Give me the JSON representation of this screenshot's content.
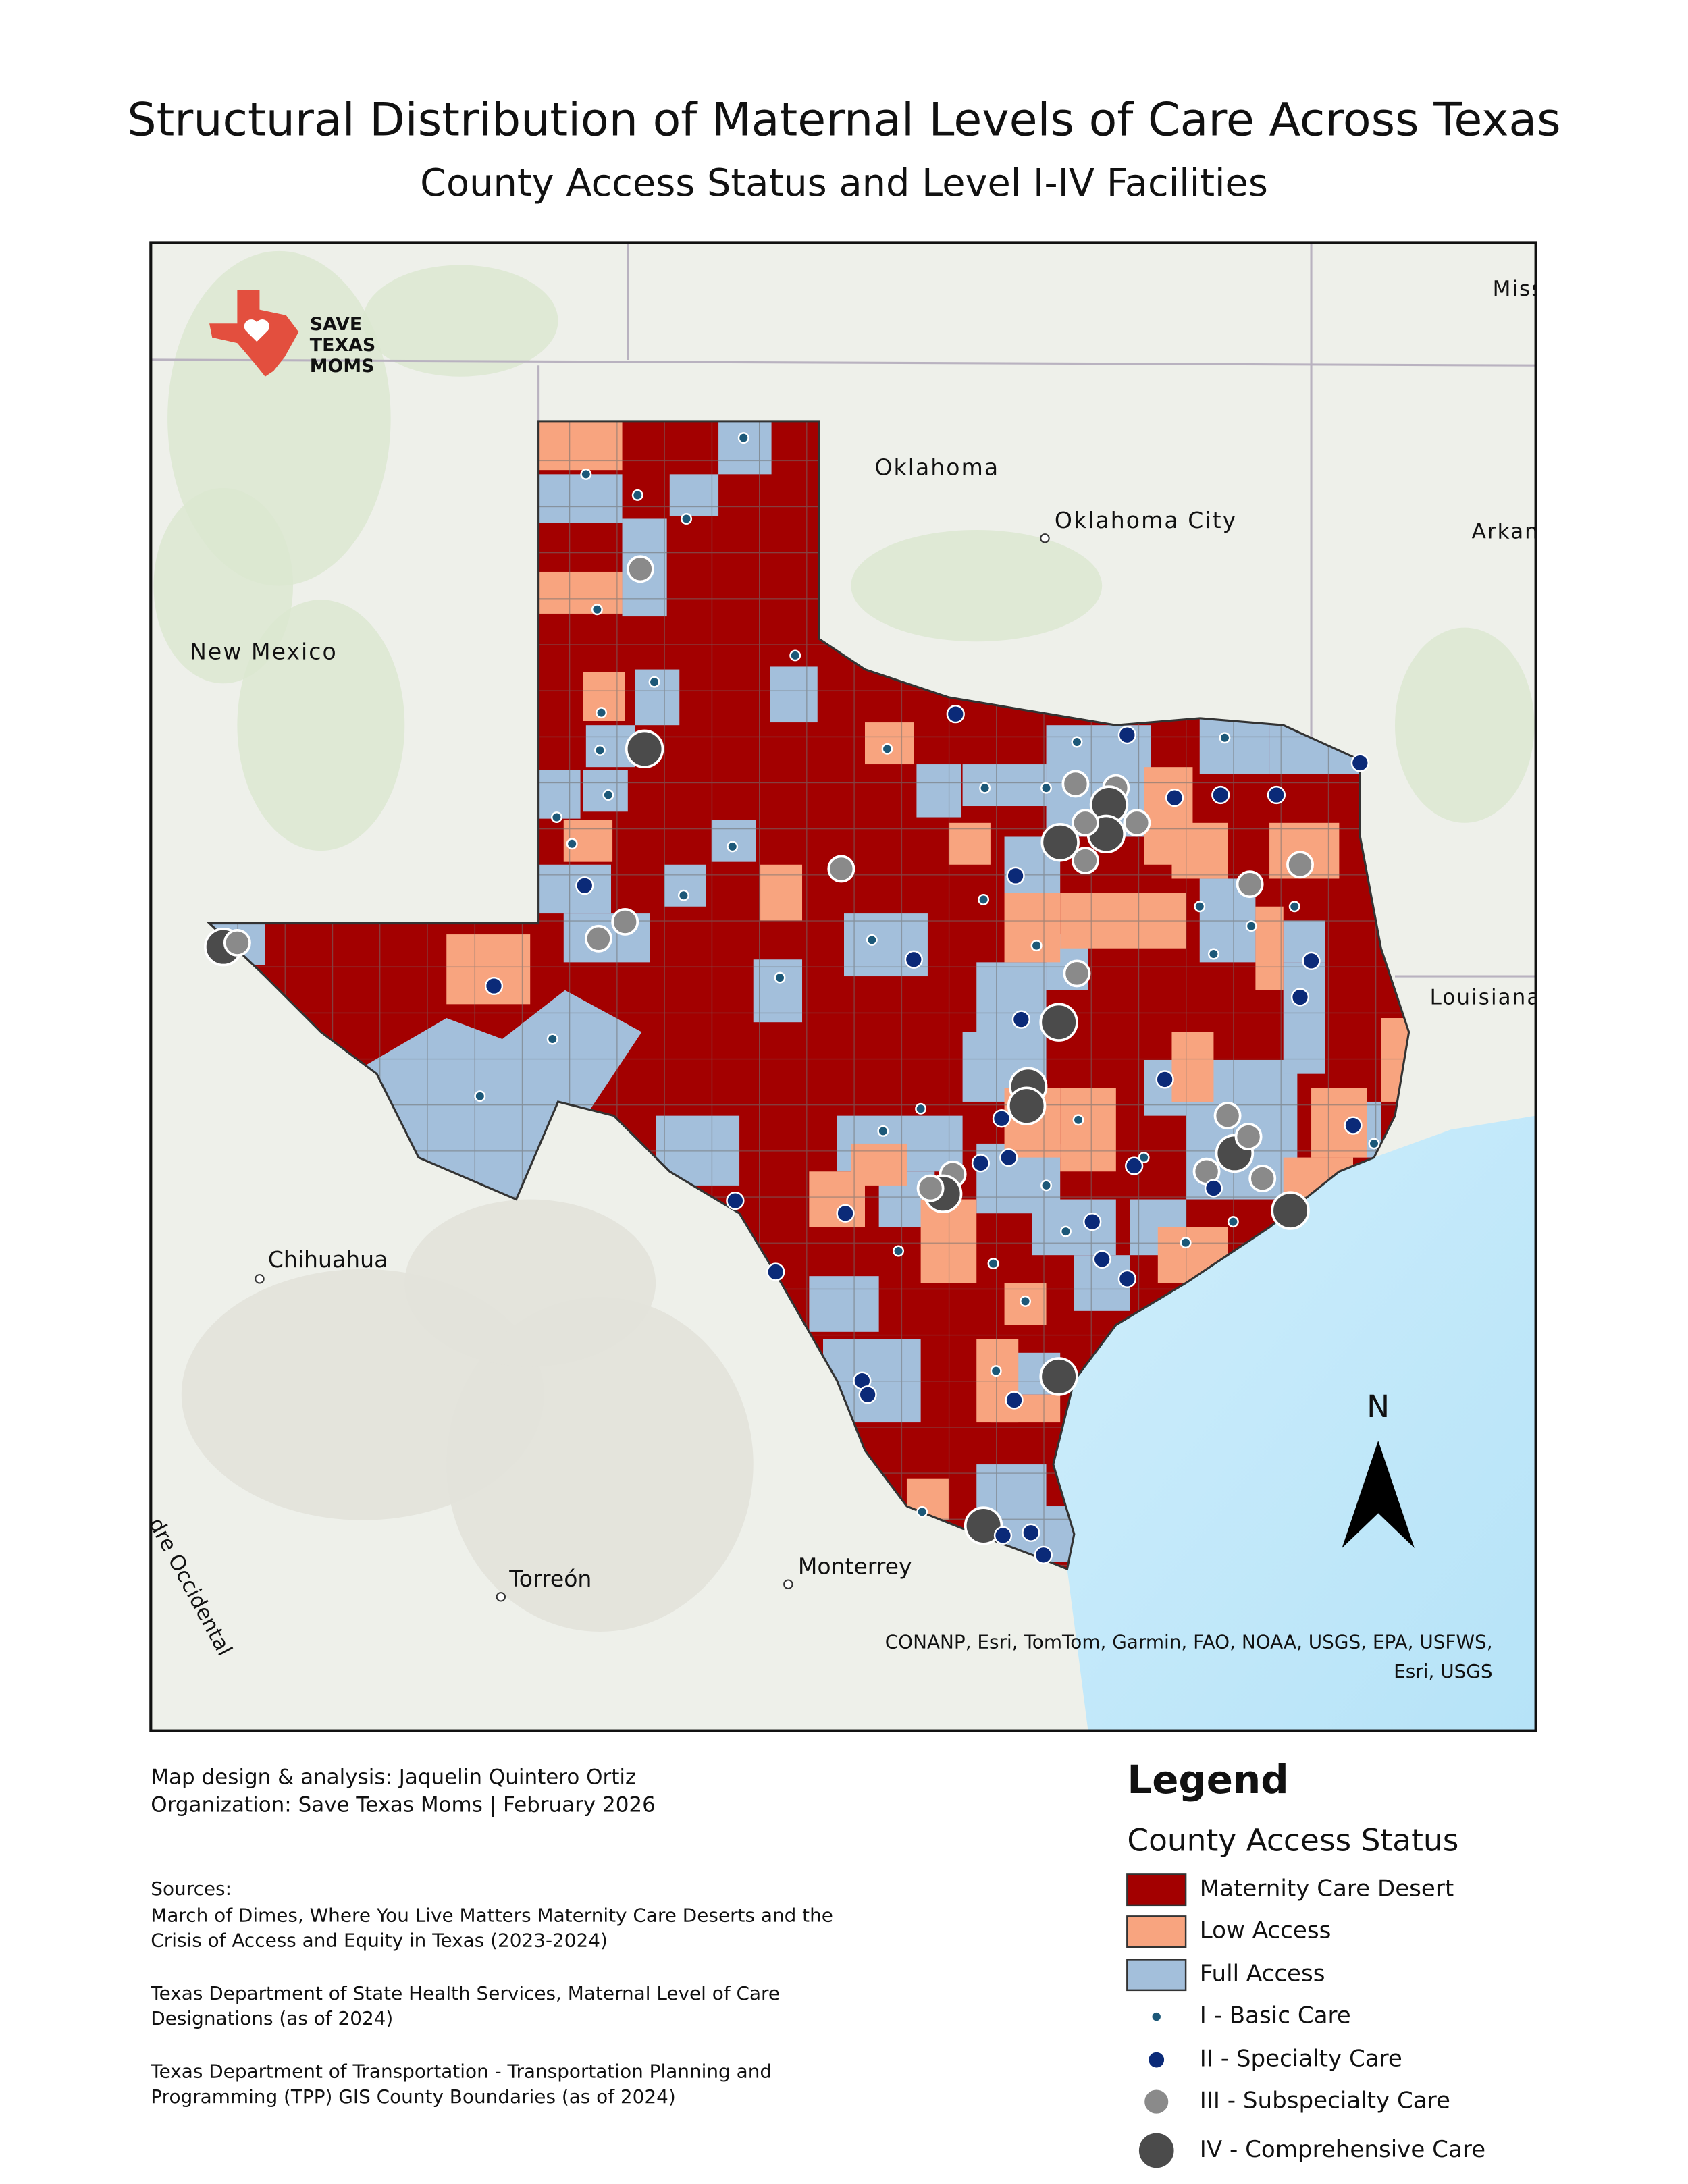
{
  "header": {
    "title": "Structural Distribution of Maternal Levels of Care Across Texas",
    "subtitle": "County Access Status and Level I-IV Facilities"
  },
  "map": {
    "logo": [
      "SAVE",
      "TEXAS",
      "MOMS"
    ],
    "places": [
      {
        "label": "Oklahoma"
      },
      {
        "label": "Oklahoma City"
      },
      {
        "label": "New Mexico"
      },
      {
        "label": "Miss"
      },
      {
        "label": "Arkan"
      },
      {
        "label": "Louisiana"
      },
      {
        "label": "Chihuahua"
      },
      {
        "label": "Torreón"
      },
      {
        "label": "Monterrey"
      },
      {
        "label": "dre Occidental"
      }
    ],
    "attribution": [
      "CONANP, Esri, TomTom, Garmin, FAO, NOAA, USGS, EPA, USFWS,",
      "Esri, USGS"
    ],
    "north": "N"
  },
  "credits": [
    "Map design & analysis: Jaquelin Quintero Ortiz",
    "Organization: Save Texas Moms | February 2026"
  ],
  "sources": {
    "heading": "Sources:",
    "items": [
      [
        "March of Dimes, Where You Live Matters Maternity Care Deserts and the",
        "Crisis of Access and Equity in Texas (2023-2024)"
      ],
      [
        "Texas Department of State Health Services, Maternal Level of Care",
        "Designations (as of 2024)"
      ],
      [
        "Texas Department of Transportation - Transportation Planning and",
        "Programming (TPP) GIS County Boundaries (as of 2024)"
      ]
    ]
  },
  "legend": {
    "title": "Legend",
    "section": "County Access Status",
    "items": [
      {
        "label": "Maternity Care Desert",
        "color": "#a30000"
      },
      {
        "label": "Low Access",
        "color": "#f8a47f"
      },
      {
        "label": "Full Access",
        "color": "#a3bfdb"
      },
      {
        "label": "I - Basic Care",
        "color": "#1c5878"
      },
      {
        "label": "II - Specialty Care",
        "color": "#0b2a78"
      },
      {
        "label": "III - Subspecialty Care",
        "color": "#8a8a8a"
      },
      {
        "label": "IV - Comprehensive Care",
        "color": "#4b4b4b"
      }
    ]
  }
}
